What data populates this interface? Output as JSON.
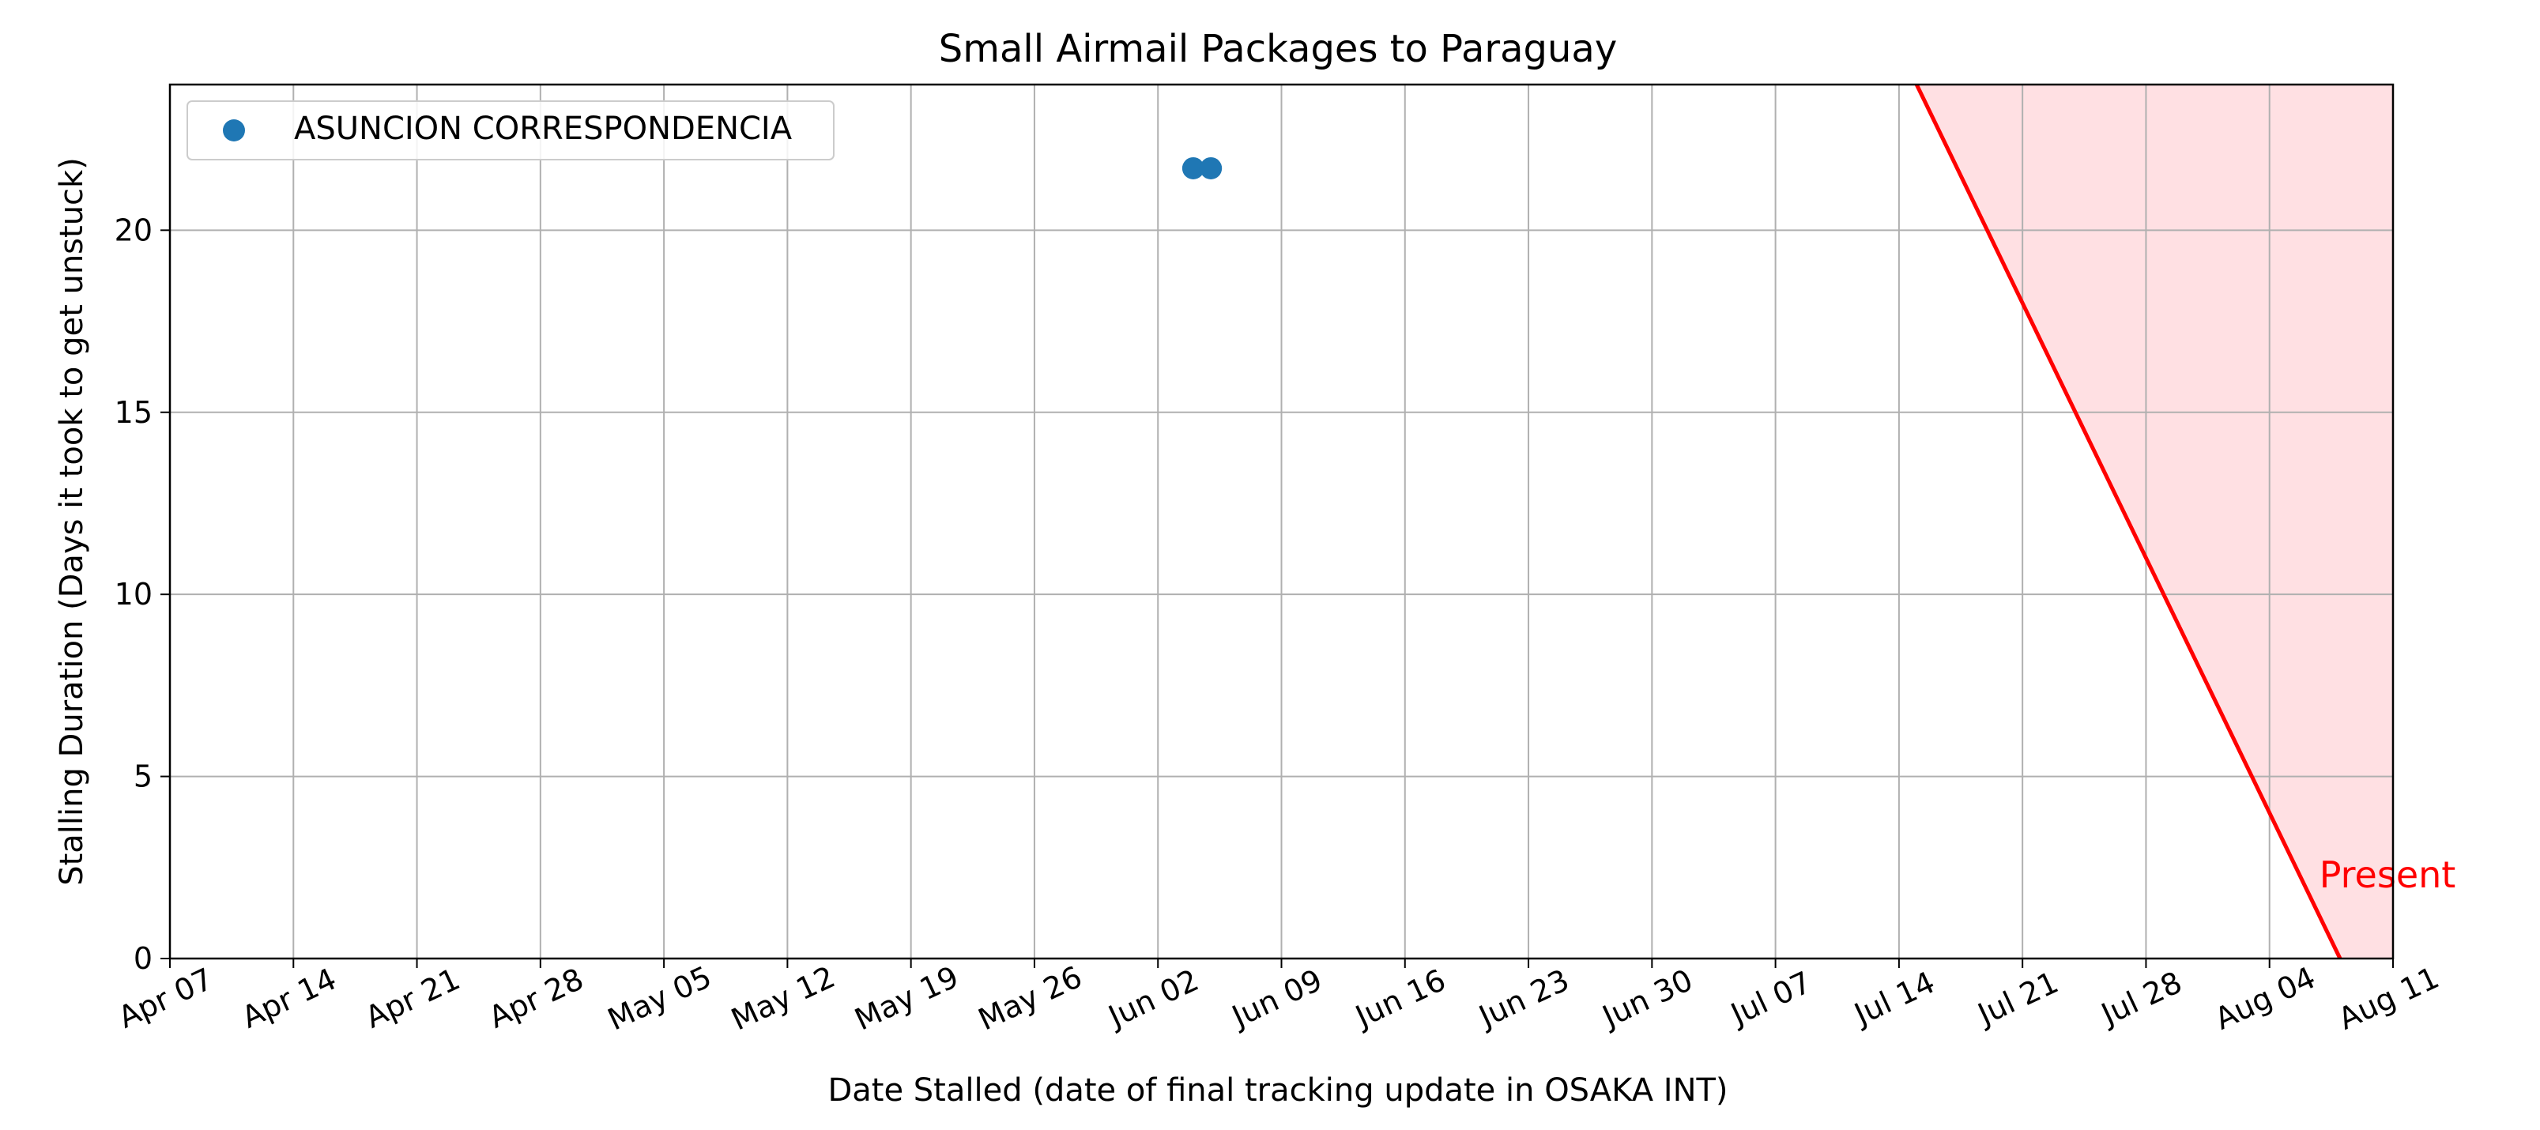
{
  "chart_data": {
    "type": "scatter",
    "title": "Small Airmail Packages to Paraguay",
    "xlabel": "Date Stalled (date of final tracking update in OSAKA INT)",
    "ylabel": "Stalling Duration (Days it took to get unstuck)",
    "xlim": [
      "2025-04-07",
      "2025-08-11"
    ],
    "ylim": [
      0,
      24
    ],
    "x_ticks": [
      "Apr 07",
      "Apr 14",
      "Apr 21",
      "Apr 28",
      "May 05",
      "May 12",
      "May 19",
      "May 26",
      "Jun 02",
      "Jun 09",
      "Jun 16",
      "Jun 23",
      "Jun 30",
      "Jul 07",
      "Jul 14",
      "Jul 21",
      "Jul 28",
      "Aug 04",
      "Aug 11"
    ],
    "y_ticks": [
      0,
      5,
      10,
      15,
      20
    ],
    "grid": true,
    "legend_position": "top-left",
    "series": [
      {
        "name": "ASUNCION CORRESPONDENCIA",
        "color": "#1f77b4",
        "points": [
          {
            "x": "2025-06-04",
            "y": 21.7
          },
          {
            "x": "2025-06-05",
            "y": 21.7
          }
        ]
      }
    ],
    "present_line": {
      "label": "Present",
      "date": "2025-08-08",
      "color": "#ff0000",
      "shade_color": "#ffe0e3"
    }
  }
}
